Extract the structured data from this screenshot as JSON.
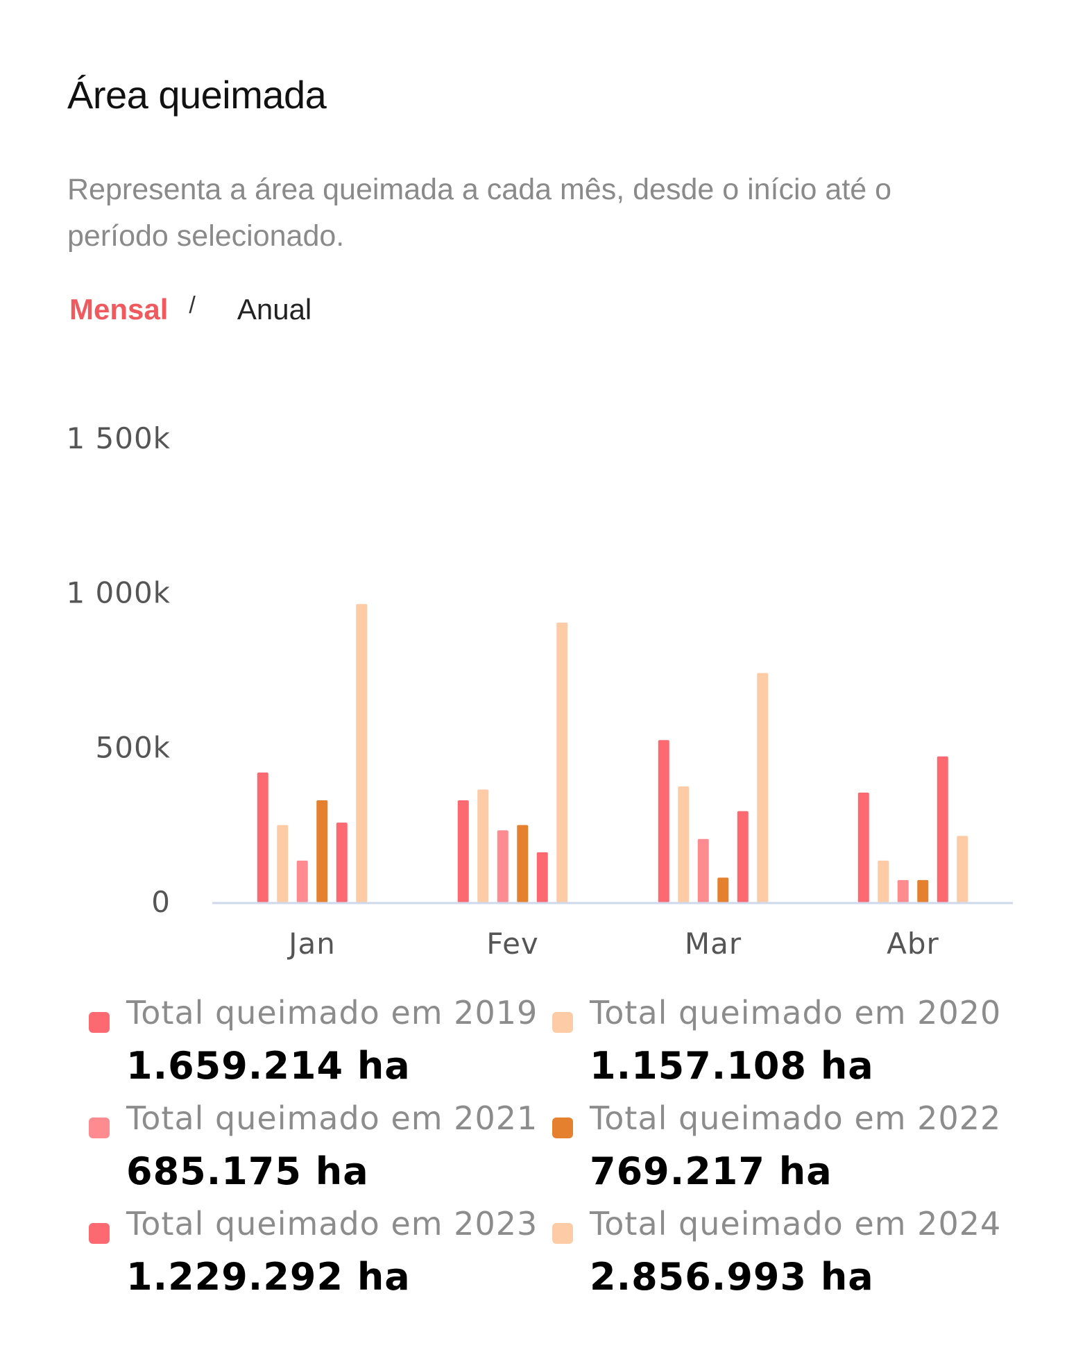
{
  "header": {
    "title": "Área queimada",
    "subtitle": "Representa a área queimada a cada mês, desde o início até o período selecionado."
  },
  "toggle": {
    "active_label": "Mensal",
    "separator": "/",
    "inactive_label": "Anual"
  },
  "colors": {
    "accent": "#f05a5f",
    "2019": "#fc6971",
    "2020": "#fecba7",
    "2021": "#fd8b90",
    "2022": "#e5802e",
    "2023": "#fc6971",
    "2024": "#fecba7",
    "axis": "#cfd8ea"
  },
  "chart_data": {
    "type": "bar",
    "categories": [
      "Jan",
      "Fev",
      "Mar",
      "Abr"
    ],
    "ylim": [
      0,
      1500000
    ],
    "yticks": [
      {
        "value": 0,
        "label": "0"
      },
      {
        "value": 500000,
        "label": "500k"
      },
      {
        "value": 1000000,
        "label": "1 000k"
      },
      {
        "value": 1500000,
        "label": "1 500k"
      }
    ],
    "series": [
      {
        "name": "Total queimado em 2019",
        "values": [
          420000,
          330000,
          525000,
          355000
        ]
      },
      {
        "name": "Total queimado em 2020",
        "values": [
          250000,
          365000,
          375000,
          135000
        ]
      },
      {
        "name": "Total queimado em 2021",
        "values": [
          135000,
          233000,
          205000,
          72000
        ]
      },
      {
        "name": "Total queimado em 2022",
        "values": [
          330000,
          250000,
          80000,
          72000
        ]
      },
      {
        "name": "Total queimado em 2023",
        "values": [
          258000,
          162000,
          295000,
          472000
        ]
      },
      {
        "name": "Total queimado em 2024",
        "values": [
          965000,
          905000,
          742000,
          215000
        ]
      }
    ],
    "grid": false,
    "legend_position": "bottom"
  },
  "legend": [
    {
      "label": "Total queimado em 2019",
      "value": "1.659.214 ha",
      "color": "#fc6971"
    },
    {
      "label": "Total queimado em 2020",
      "value": "1.157.108 ha",
      "color": "#fecba7"
    },
    {
      "label": "Total queimado em 2021",
      "value": "685.175 ha",
      "color": "#fd8b90"
    },
    {
      "label": "Total queimado em 2022",
      "value": "769.217 ha",
      "color": "#e5802e"
    },
    {
      "label": "Total queimado em 2023",
      "value": "1.229.292 ha",
      "color": "#fc6971"
    },
    {
      "label": "Total queimado em 2024",
      "value": "2.856.993 ha",
      "color": "#fecba7"
    }
  ]
}
